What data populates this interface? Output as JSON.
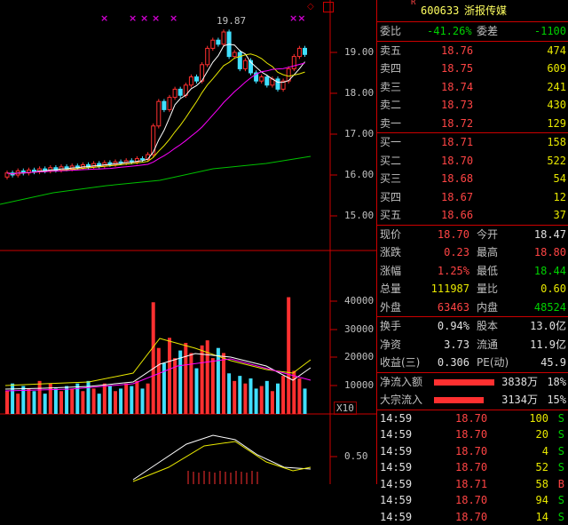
{
  "header": {
    "r_mark": "R",
    "code": "600633",
    "name": "浙报传媒"
  },
  "ratio": {
    "label": "委比",
    "value": "-41.26%",
    "diff_label": "委差",
    "diff": "-1100"
  },
  "sell": [
    {
      "label": "卖五",
      "price": "18.76",
      "volume": "474"
    },
    {
      "label": "卖四",
      "price": "18.75",
      "volume": "609"
    },
    {
      "label": "卖三",
      "price": "18.74",
      "volume": "241"
    },
    {
      "label": "卖二",
      "price": "18.73",
      "volume": "430"
    },
    {
      "label": "卖一",
      "price": "18.72",
      "volume": "129"
    }
  ],
  "buy": [
    {
      "label": "买一",
      "price": "18.71",
      "volume": "158"
    },
    {
      "label": "买二",
      "price": "18.70",
      "volume": "522"
    },
    {
      "label": "买三",
      "price": "18.68",
      "volume": "54"
    },
    {
      "label": "买四",
      "price": "18.67",
      "volume": "12"
    },
    {
      "label": "买五",
      "price": "18.66",
      "volume": "37"
    }
  ],
  "quote": [
    {
      "l1": "现价",
      "v1": "18.70",
      "l2": "今开",
      "v2": "18.47",
      "c1": "red",
      "c2": "white"
    },
    {
      "l1": "涨跌",
      "v1": "0.23",
      "l2": "最高",
      "v2": "18.80",
      "c1": "red",
      "c2": "red"
    },
    {
      "l1": "涨幅",
      "v1": "1.25%",
      "l2": "最低",
      "v2": "18.44",
      "c1": "red",
      "c2": "green"
    },
    {
      "l1": "总量",
      "v1": "111987",
      "l2": "量比",
      "v2": "0.60",
      "c1": "yellow",
      "c2": "yellow"
    },
    {
      "l1": "外盘",
      "v1": "63463",
      "l2": "内盘",
      "v2": "48524",
      "c1": "red",
      "c2": "green"
    }
  ],
  "fundamentals": [
    {
      "l1": "换手",
      "v1": "0.94%",
      "l2": "股本",
      "v2": "13.0亿"
    },
    {
      "l1": "净资",
      "v1": "3.73",
      "l2": "流通",
      "v2": "11.9亿"
    },
    {
      "l1": "收益(三)",
      "v1": "0.306",
      "l2": "PE(动)",
      "v2": "45.9"
    }
  ],
  "flows": [
    {
      "label": "净流入额",
      "amount": "3838万",
      "pct": "18%",
      "ratio": 0.85
    },
    {
      "label": "大宗流入",
      "amount": "3134万",
      "pct": "15%",
      "ratio": 0.7
    }
  ],
  "ticks": [
    {
      "time": "14:59",
      "price": "18.70",
      "vol": "100",
      "side": "S"
    },
    {
      "time": "14:59",
      "price": "18.70",
      "vol": "20",
      "side": "S"
    },
    {
      "time": "14:59",
      "price": "18.70",
      "vol": "4",
      "side": "S"
    },
    {
      "time": "14:59",
      "price": "18.70",
      "vol": "52",
      "side": "S"
    },
    {
      "time": "14:59",
      "price": "18.71",
      "vol": "58",
      "side": "B"
    },
    {
      "time": "14:59",
      "price": "18.70",
      "vol": "94",
      "side": "S"
    },
    {
      "time": "14:59",
      "price": "18.70",
      "vol": "14",
      "side": "S"
    }
  ],
  "chart": {
    "price_axis": [
      "19.00",
      "18.00",
      "17.00",
      "16.00",
      "15.00"
    ],
    "volume_axis": [
      "40000",
      "30000",
      "20000",
      "10000"
    ],
    "volume_unit": "X10",
    "macd_axis": [
      "0.50"
    ],
    "high_label": "19.87"
  },
  "colors": {
    "up": "#ff3030",
    "down": "#40e0ff",
    "border": "#cc0000",
    "ma5": "#ffffff",
    "ma10": "#e8e800",
    "ma20": "#ff00ff",
    "ma60": "#00c000"
  }
}
